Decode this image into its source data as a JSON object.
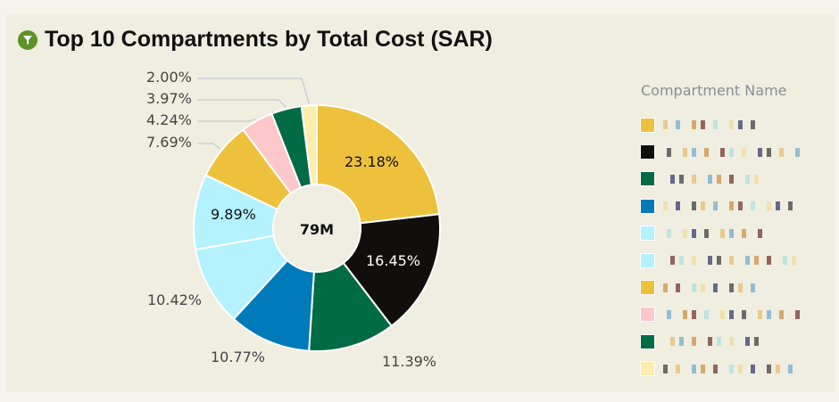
{
  "title": "Top 10 Compartments by Total Cost (SAR)",
  "title_icon": "funnel-icon",
  "colors": {
    "background": "#f0eee0",
    "accent": "#5e9327"
  },
  "chart_data": {
    "type": "donut",
    "title": "Top 10 Compartments by Total Cost (SAR)",
    "center_label": "79M",
    "legend_title": "Compartment Name",
    "legend_placement": "right",
    "slices": [
      {
        "value": 23.18,
        "label": "23.18%",
        "color": "#edc13c"
      },
      {
        "value": 16.45,
        "label": "16.45%",
        "color": "#110f0e"
      },
      {
        "value": 11.39,
        "label": "11.39%",
        "color": "#006b45"
      },
      {
        "value": 10.77,
        "label": "10.77%",
        "color": "#007ab8"
      },
      {
        "value": 10.42,
        "label": "10.42%",
        "color": "#b3f2fe"
      },
      {
        "value": 9.89,
        "label": "9.89%",
        "color": "#b3f2fe"
      },
      {
        "value": 7.69,
        "label": "7.69%",
        "color": "#edc13c"
      },
      {
        "value": 4.24,
        "label": "4.24%",
        "color": "#fec7c9"
      },
      {
        "value": 3.97,
        "label": "3.97%",
        "color": "#006b45"
      },
      {
        "value": 2.0,
        "label": "2.00%",
        "color": "#ffedad"
      }
    ]
  }
}
